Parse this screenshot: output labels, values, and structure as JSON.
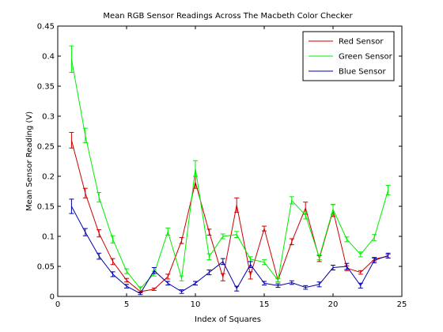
{
  "chart_data": {
    "type": "line",
    "title": "Mean RGB Sensor Readings Across The Macbeth Color Checker",
    "xlabel": "Index of Squares",
    "ylabel": "Mean Sensor Reading (V)",
    "xlim": [
      0,
      25
    ],
    "ylim": [
      0,
      0.45
    ],
    "xticks": [
      "0",
      "5",
      "10",
      "15",
      "20",
      "25"
    ],
    "yticks": [
      "0",
      "0.05",
      "0.1",
      "0.15",
      "0.2",
      "0.25",
      "0.3",
      "0.35",
      "0.4",
      "0.45"
    ],
    "grid": false,
    "legend_position": "top-right",
    "x": [
      1,
      2,
      3,
      4,
      5,
      6,
      7,
      8,
      9,
      10,
      11,
      12,
      13,
      14,
      15,
      16,
      17,
      18,
      19,
      20,
      21,
      22,
      23,
      24
    ],
    "series": [
      {
        "name": "Red Sensor",
        "color": "#cc0000",
        "values": [
          0.26,
          0.172,
          0.105,
          0.058,
          0.027,
          0.008,
          0.012,
          0.033,
          0.093,
          0.19,
          0.107,
          0.032,
          0.152,
          0.035,
          0.113,
          0.027,
          0.091,
          0.147,
          0.063,
          0.143,
          0.047,
          0.04,
          0.062,
          0.067
        ],
        "errors": [
          0.013,
          0.008,
          0.006,
          0.005,
          0.003,
          0.002,
          0.002,
          0.004,
          0.005,
          0.01,
          0.005,
          0.006,
          0.012,
          0.006,
          0.004,
          0.003,
          0.005,
          0.01,
          0.005,
          0.01,
          0.004,
          0.003,
          0.003,
          0.003
        ]
      },
      {
        "name": "Green Sensor",
        "color": "#00ee00",
        "values": [
          0.395,
          0.268,
          0.165,
          0.095,
          0.042,
          0.013,
          0.038,
          0.108,
          0.03,
          0.213,
          0.066,
          0.1,
          0.103,
          0.062,
          0.057,
          0.027,
          0.16,
          0.135,
          0.065,
          0.145,
          0.095,
          0.07,
          0.098,
          0.177
        ]
      },
      {
        "name": "Blue Sensor",
        "color": "#0000aa",
        "values": [
          0.15,
          0.107,
          0.067,
          0.037,
          0.017,
          0.005,
          0.043,
          0.022,
          0.008,
          0.022,
          0.04,
          0.058,
          0.013,
          0.053,
          0.022,
          0.018,
          0.023,
          0.015,
          0.02,
          0.048,
          0.05,
          0.018,
          0.06,
          0.068
        ]
      }
    ]
  }
}
